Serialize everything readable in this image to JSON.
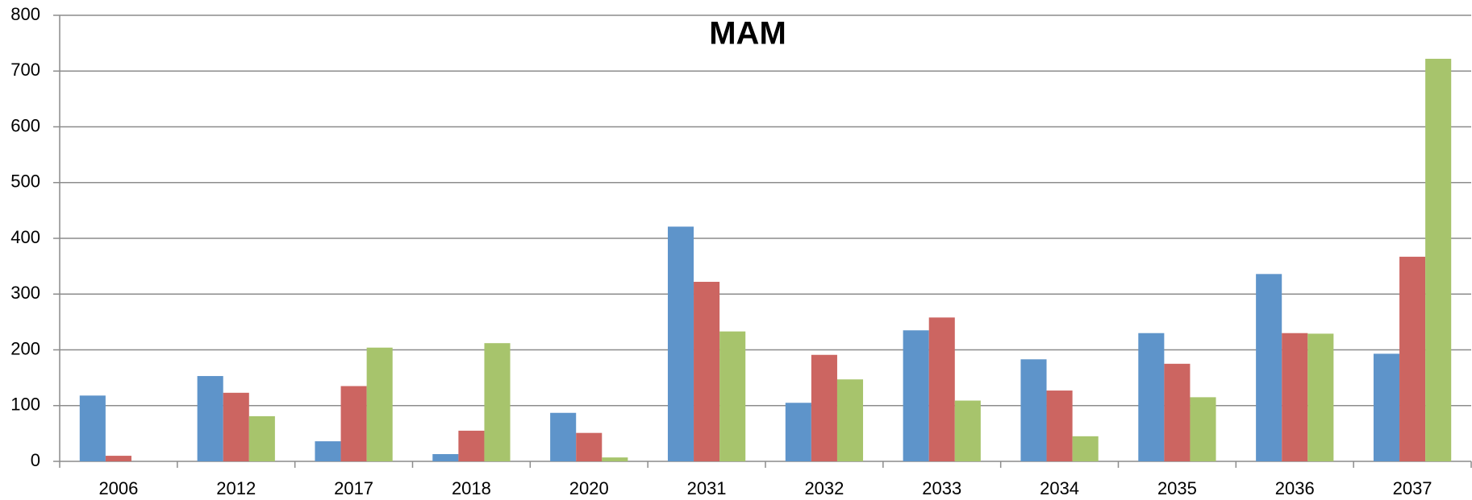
{
  "chart_data": {
    "type": "bar",
    "title": "MAM",
    "categories": [
      "2006",
      "2012",
      "2017",
      "2018",
      "2020",
      "2031",
      "2032",
      "2033",
      "2034",
      "2035",
      "2036",
      "2037"
    ],
    "series": [
      {
        "color": "#5e94ca",
        "values": [
          118,
          153,
          36,
          13,
          87,
          421,
          105,
          235,
          183,
          230,
          336,
          193
        ]
      },
      {
        "color": "#cc6561",
        "values": [
          10,
          123,
          135,
          55,
          51,
          322,
          191,
          258,
          127,
          175,
          230,
          367
        ]
      },
      {
        "color": "#a7c46c",
        "values": [
          0,
          81,
          204,
          212,
          7,
          233,
          147,
          109,
          45,
          115,
          229,
          722
        ]
      }
    ],
    "ylim": [
      0,
      800
    ],
    "yticks": [
      0,
      100,
      200,
      300,
      400,
      500,
      600,
      700,
      800
    ],
    "grid": true
  }
}
